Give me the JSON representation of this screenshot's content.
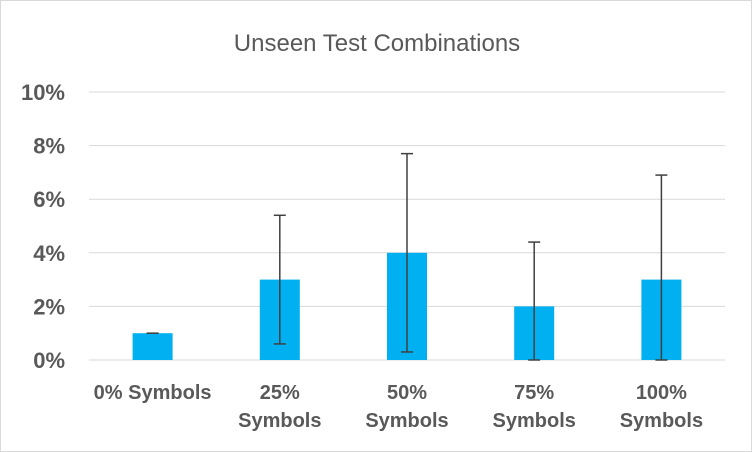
{
  "chart_data": {
    "type": "bar",
    "title": "Unseen Test Combinations",
    "categories": [
      "0% Symbols",
      "25% Symbols",
      "50% Symbols",
      "75% Symbols",
      "100% Symbols"
    ],
    "category_lines": [
      [
        "0% Symbols"
      ],
      [
        "25%",
        "Symbols"
      ],
      [
        "50%",
        "Symbols"
      ],
      [
        "75%",
        "Symbols"
      ],
      [
        "100%",
        "Symbols"
      ]
    ],
    "series": [
      {
        "values": [
          1.0,
          3.0,
          4.0,
          2.0,
          3.0
        ],
        "error_low": [
          1.0,
          0.6,
          0.3,
          0.0,
          0.0
        ],
        "error_high": [
          1.0,
          5.4,
          7.7,
          4.4,
          6.9
        ],
        "color": "#00b0f0"
      }
    ],
    "yticks": [
      "0%",
      "2%",
      "4%",
      "6%",
      "8%",
      "10%"
    ],
    "ytick_values": [
      0,
      2,
      4,
      6,
      8,
      10
    ],
    "ylim": [
      0,
      10
    ],
    "grid": true,
    "grid_color": "#d9d9d9",
    "error_bar_color": "#404040"
  }
}
